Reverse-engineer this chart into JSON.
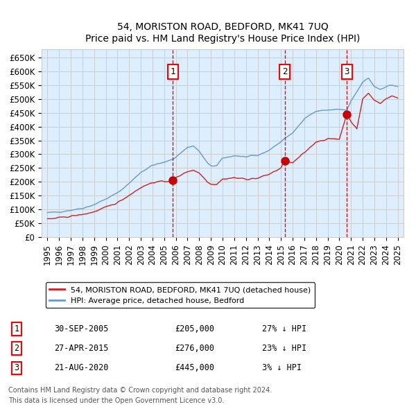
{
  "title": "54, MORISTON ROAD, BEDFORD, MK41 7UQ",
  "subtitle": "Price paid vs. HM Land Registry's House Price Index (HPI)",
  "xlabel": "",
  "ylabel": "",
  "ylim": [
    0,
    680000
  ],
  "yticks": [
    0,
    50000,
    100000,
    150000,
    200000,
    250000,
    300000,
    350000,
    400000,
    450000,
    500000,
    550000,
    600000,
    650000
  ],
  "ytick_labels": [
    "£0",
    "£50K",
    "£100K",
    "£150K",
    "£200K",
    "£250K",
    "£300K",
    "£350K",
    "£400K",
    "£450K",
    "£500K",
    "£550K",
    "£600K",
    "£650K"
  ],
  "xlim_start": 1994.5,
  "xlim_end": 2025.5,
  "xticks": [
    1995,
    1996,
    1997,
    1998,
    1999,
    2000,
    2001,
    2002,
    2003,
    2004,
    2005,
    2006,
    2007,
    2008,
    2009,
    2010,
    2011,
    2012,
    2013,
    2014,
    2015,
    2016,
    2017,
    2018,
    2019,
    2020,
    2021,
    2022,
    2023,
    2024,
    2025
  ],
  "hpi_color": "#6699cc",
  "price_color": "#cc2222",
  "marker_color": "#cc0000",
  "vline_color": "#cc0000",
  "grid_color": "#cccccc",
  "bg_color": "#ddeeff",
  "sale_dates": [
    2005.75,
    2015.32,
    2020.64
  ],
  "sale_prices": [
    205000,
    276000,
    445000
  ],
  "sale_labels": [
    "1",
    "2",
    "3"
  ],
  "sale_info": [
    {
      "num": "1",
      "date": "30-SEP-2005",
      "price": "£205,000",
      "pct": "27% ↓ HPI"
    },
    {
      "num": "2",
      "date": "27-APR-2015",
      "price": "£276,000",
      "pct": "23% ↓ HPI"
    },
    {
      "num": "3",
      "date": "21-AUG-2020",
      "price": "£445,000",
      "pct": "3% ↓ HPI"
    }
  ],
  "legend_line1": "54, MORISTON ROAD, BEDFORD, MK41 7UQ (detached house)",
  "legend_line2": "HPI: Average price, detached house, Bedford",
  "footer1": "Contains HM Land Registry data © Crown copyright and database right 2024.",
  "footer2": "This data is licensed under the Open Government Licence v3.0."
}
